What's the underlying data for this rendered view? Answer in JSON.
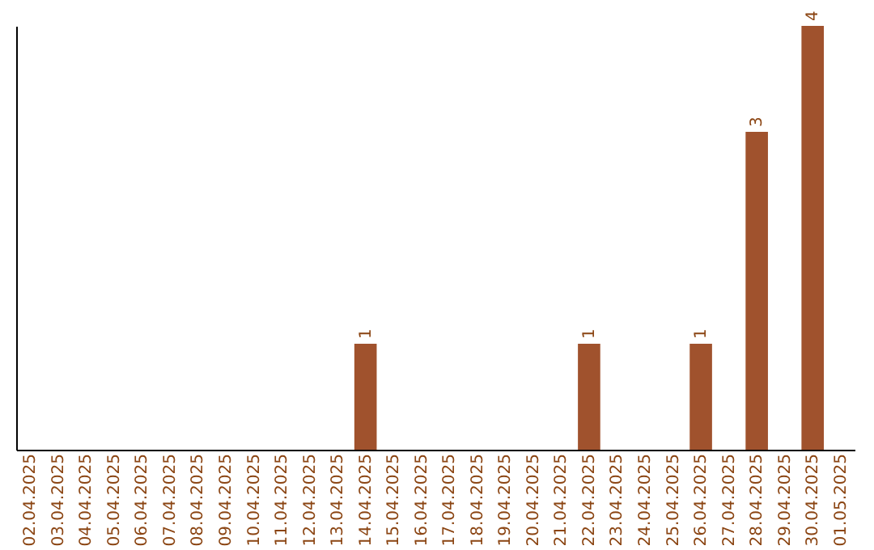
{
  "chart_data": {
    "type": "bar",
    "categories": [
      "02.04.2025",
      "03.04.2025",
      "04.04.2025",
      "05.04.2025",
      "06.04.2025",
      "07.04.2025",
      "08.04.2025",
      "09.04.2025",
      "10.04.2025",
      "11.04.2025",
      "12.04.2025",
      "13.04.2025",
      "14.04.2025",
      "15.04.2025",
      "16.04.2025",
      "17.04.2025",
      "18.04.2025",
      "19.04.2025",
      "20.04.2025",
      "21.04.2025",
      "22.04.2025",
      "23.04.2025",
      "24.04.2025",
      "25.04.2025",
      "26.04.2025",
      "27.04.2025",
      "28.04.2025",
      "29.04.2025",
      "30.04.2025",
      "01.05.2025"
    ],
    "values": [
      null,
      null,
      null,
      null,
      null,
      null,
      null,
      null,
      null,
      null,
      null,
      null,
      1,
      null,
      null,
      null,
      null,
      null,
      null,
      null,
      1,
      null,
      null,
      null,
      1,
      null,
      3,
      null,
      4,
      null
    ],
    "data_labels": true,
    "color": "#a0522d",
    "tick_labels": "x"
  }
}
